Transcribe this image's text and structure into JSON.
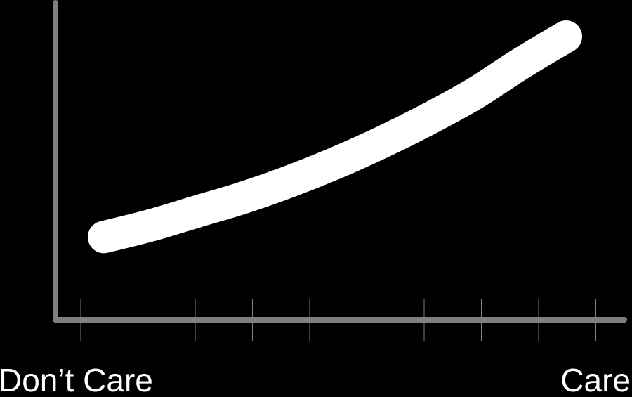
{
  "chart_data": {
    "type": "line",
    "title": "",
    "xlabel": "",
    "ylabel": "",
    "x_tick_labels": {
      "left": "Don’t Care",
      "right": "Care"
    },
    "xlim": [
      0,
      1
    ],
    "ylim": [
      0,
      1
    ],
    "grid": false,
    "legend": "none",
    "x_tick_count": 10,
    "series": [
      {
        "x": [
          0.0,
          0.1,
          0.2,
          0.3,
          0.4,
          0.5,
          0.6,
          0.7,
          0.8,
          0.9,
          1.0
        ],
        "values": [
          0.13,
          0.18,
          0.24,
          0.3,
          0.37,
          0.45,
          0.54,
          0.64,
          0.75,
          0.88,
          1.0
        ]
      }
    ],
    "colors": {
      "background": "#000000",
      "axis": "#7f7f7f",
      "curve": "#ffffff",
      "text": "#ffffff"
    }
  }
}
